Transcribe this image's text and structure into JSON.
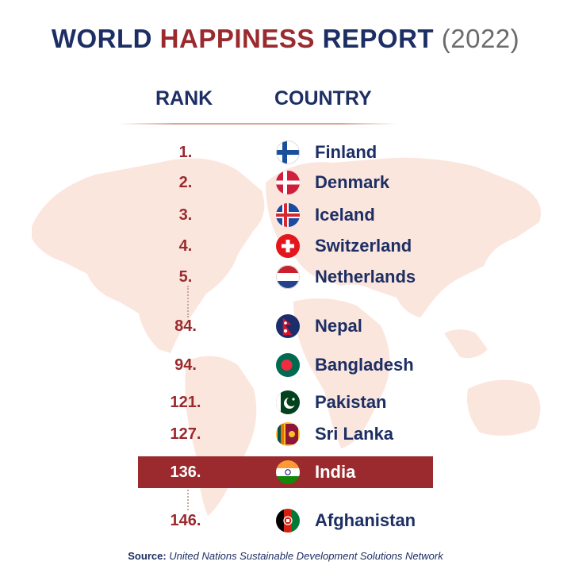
{
  "title": {
    "part1": "WORLD",
    "part2": "HAPPINESS",
    "part3": "REPORT",
    "year": "(2022)"
  },
  "headers": {
    "rank": "RANK",
    "country": "COUNTRY"
  },
  "rows": [
    {
      "rank": "1.",
      "country": "Finland",
      "flag": "finland-flag-icon",
      "highlight": false
    },
    {
      "rank": "2.",
      "country": "Denmark",
      "flag": "denmark-flag-icon",
      "highlight": false
    },
    {
      "rank": "3.",
      "country": "Iceland",
      "flag": "iceland-flag-icon",
      "highlight": false
    },
    {
      "rank": "4.",
      "country": "Switzerland",
      "flag": "switzerland-flag-icon",
      "highlight": false
    },
    {
      "rank": "5.",
      "country": "Netherlands",
      "flag": "netherlands-flag-icon",
      "highlight": false
    },
    {
      "rank": "84.",
      "country": "Nepal",
      "flag": "nepal-flag-icon",
      "highlight": false
    },
    {
      "rank": "94.",
      "country": "Bangladesh",
      "flag": "bangladesh-flag-icon",
      "highlight": false
    },
    {
      "rank": "121.",
      "country": "Pakistan",
      "flag": "pakistan-flag-icon",
      "highlight": false
    },
    {
      "rank": "127.",
      "country": "Sri Lanka",
      "flag": "sri-lanka-flag-icon",
      "highlight": false
    },
    {
      "rank": "136.",
      "country": "India",
      "flag": "india-flag-icon",
      "highlight": true
    },
    {
      "rank": "146.",
      "country": "Afghanistan",
      "flag": "afghanistan-flag-icon",
      "highlight": false
    }
  ],
  "source": {
    "label": "Source:",
    "text": "United Nations Sustainable Development Solutions Network"
  },
  "colors": {
    "navy": "#1c2e63",
    "maroon": "#9a2a2d",
    "map": "#fbe6de"
  }
}
